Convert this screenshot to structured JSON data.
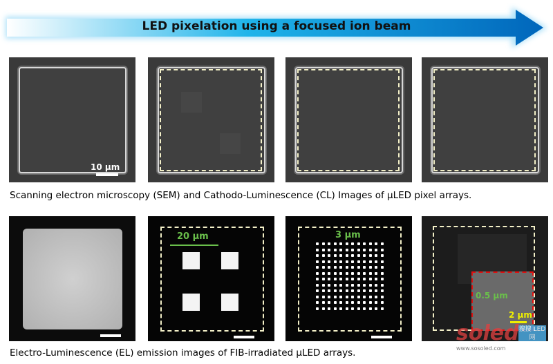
{
  "header": {
    "title": "LED pixelation using a focused ion beam",
    "colors": {
      "start": "#ffffff",
      "mid": "#1fb4ea",
      "end": "#0070c0"
    }
  },
  "row1": {
    "caption": "Scanning electron microscopy (SEM) and Cathodo-Luminescence (CL) Images of µLED pixel arrays.",
    "scale_label": "10 µm"
  },
  "row2": {
    "caption": "Electro-Luminescence (EL) emission images of FIB-irradiated µLED arrays.",
    "label_20": "20 µm",
    "label_3": "3 µm",
    "label_05": "0.5 µm",
    "label_2": "2 µm"
  },
  "watermark": {
    "text": "soled",
    "url": "www.sosoled.com",
    "badge": "搜搜 LED网"
  }
}
